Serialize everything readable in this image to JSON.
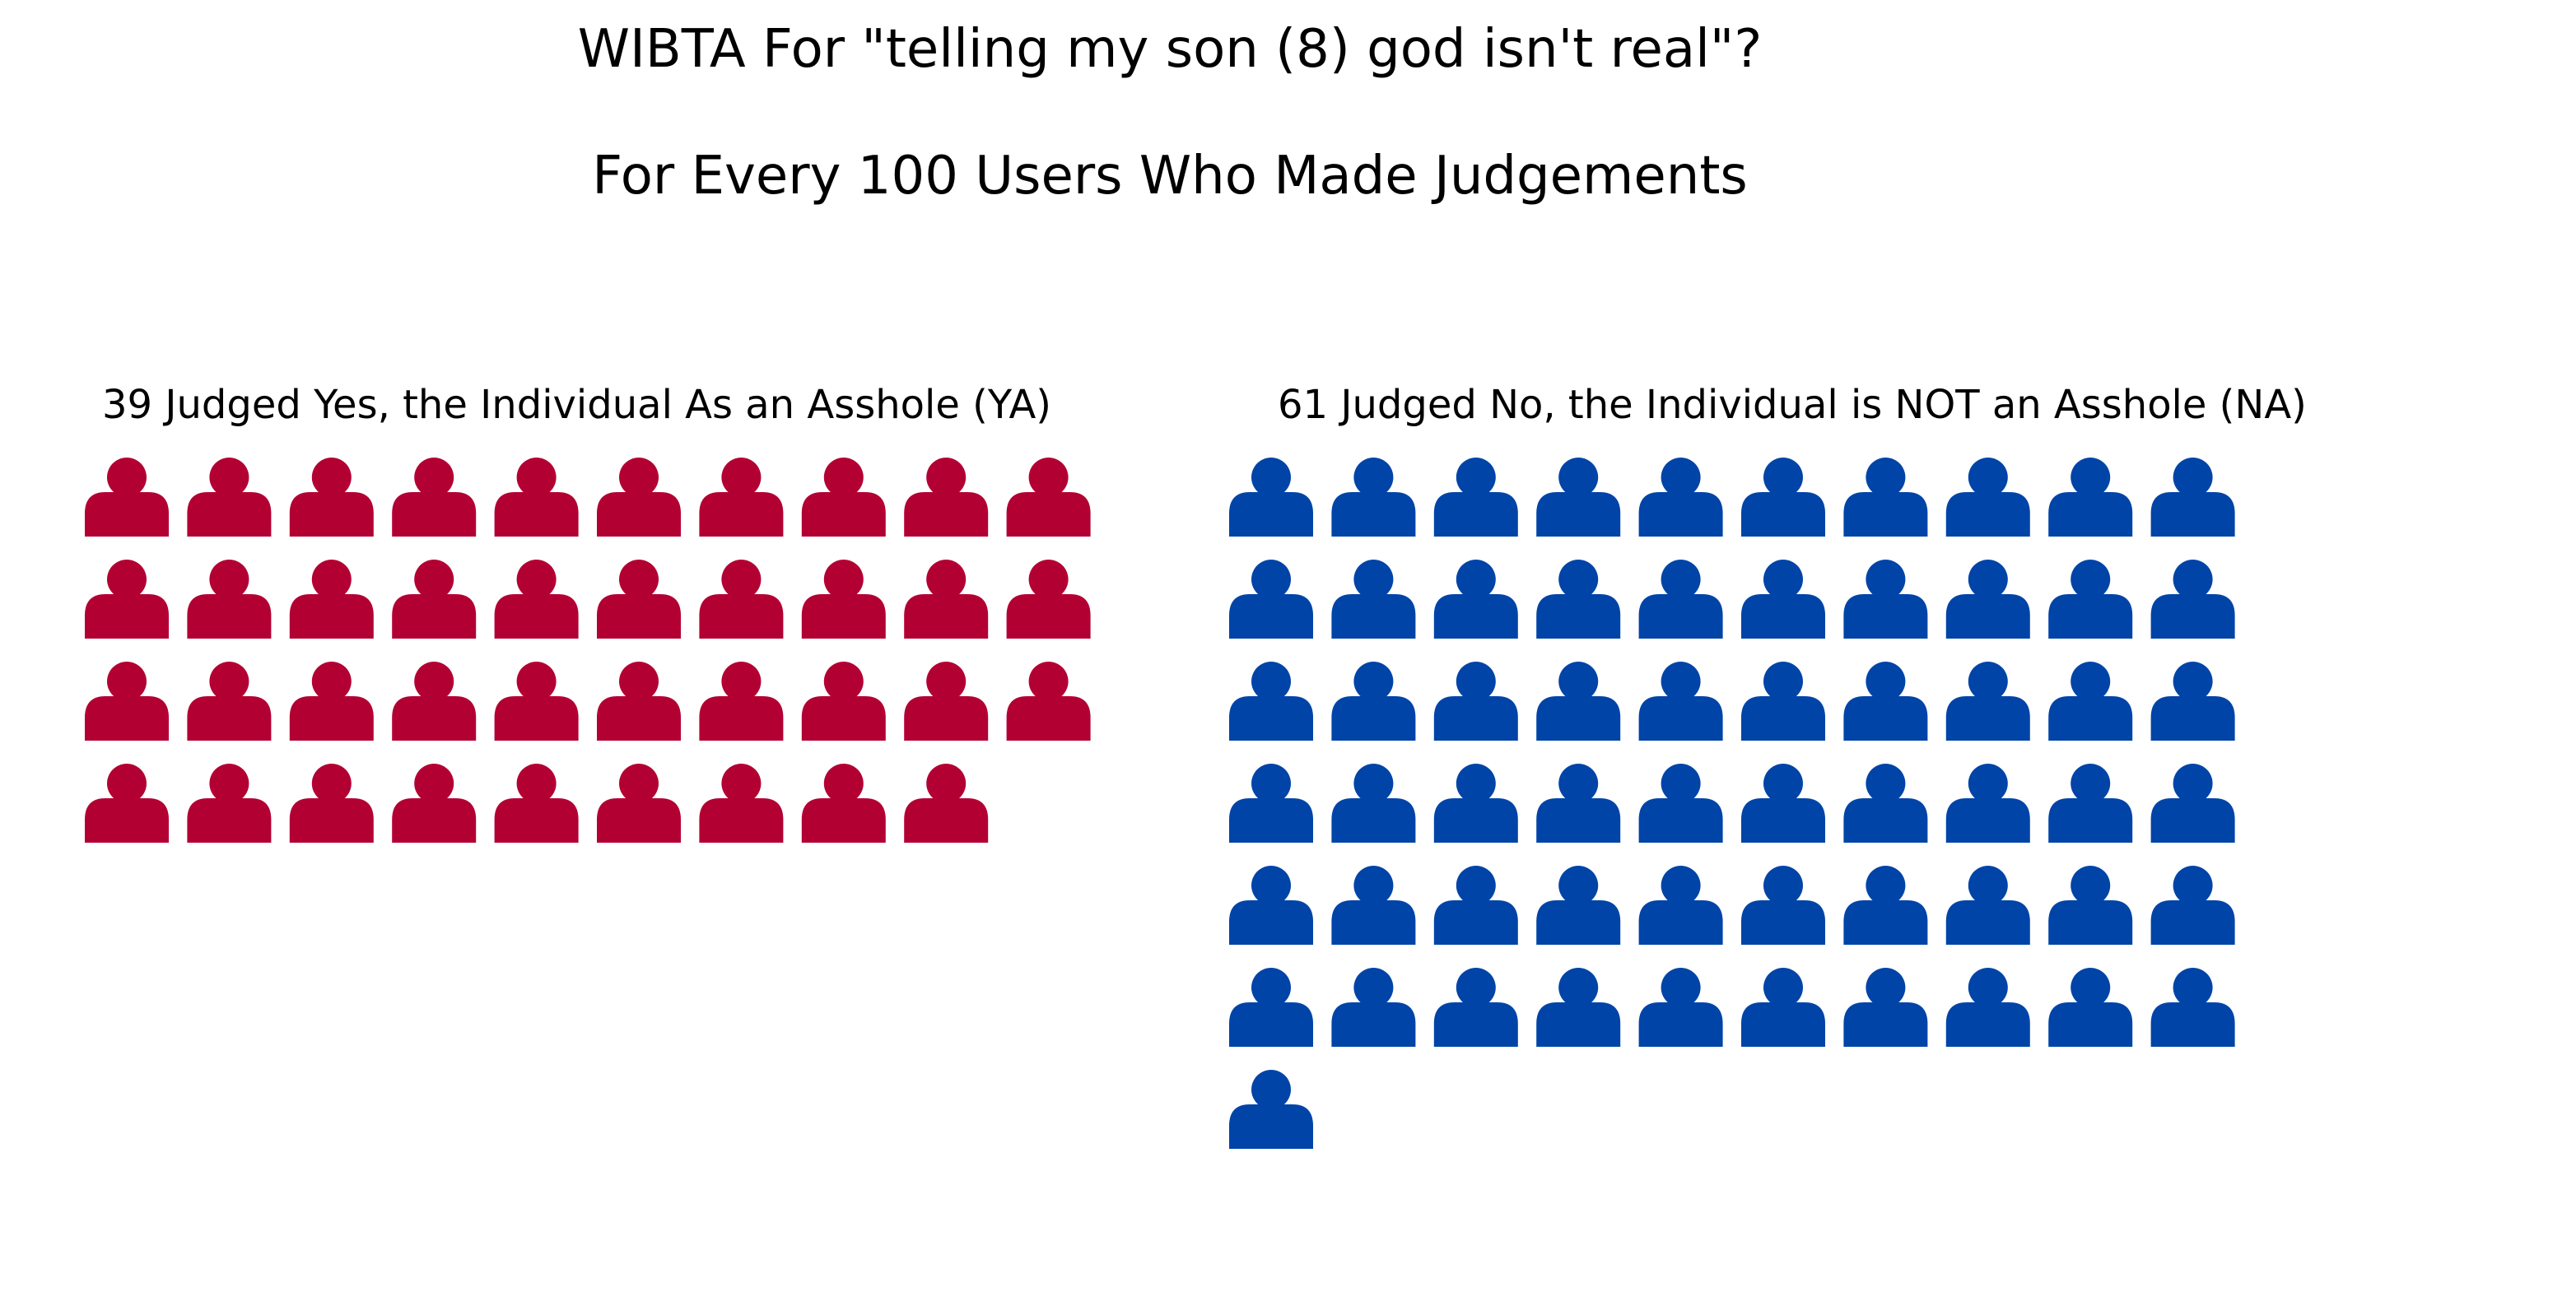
{
  "chart_data": {
    "type": "pictograph",
    "title": "WIBTA For \"telling my son (8) god isn't real\"?",
    "subtitle": "For Every 100 Users Who Made Judgements",
    "icon": "person-icon",
    "icons_per_row": 10,
    "series": [
      {
        "name": "39 Judged Yes, the Individual As an Asshole (YA)",
        "value": 39,
        "color": "#b30033"
      },
      {
        "name": "61 Judged No, the Individual is NOT an Asshole (NA)",
        "value": 61,
        "color": "#0044a8"
      }
    ]
  }
}
